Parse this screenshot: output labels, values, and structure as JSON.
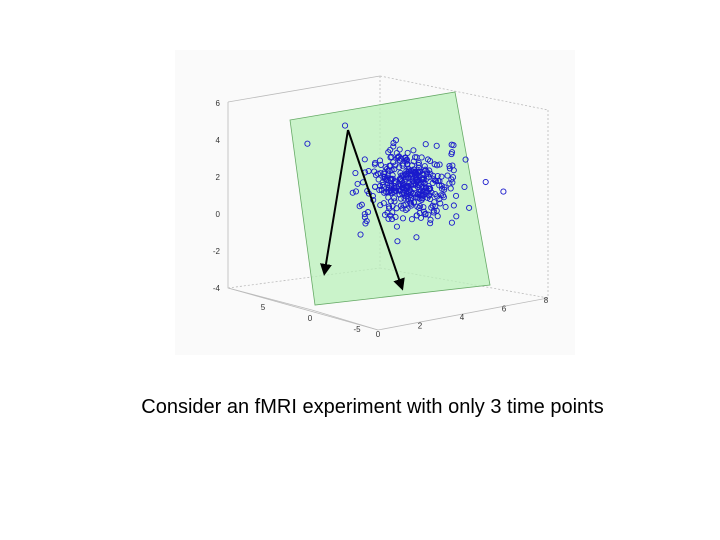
{
  "figure": {
    "z_ticks": [
      "6",
      "4",
      "2",
      "0",
      "-2",
      "-4"
    ],
    "x_ticks": [
      "5",
      "0",
      "-5"
    ],
    "y_ticks": [
      "0",
      "2",
      "4",
      "6",
      "8"
    ]
  },
  "caption": "Consider an fMRI experiment with only 3 time points"
}
